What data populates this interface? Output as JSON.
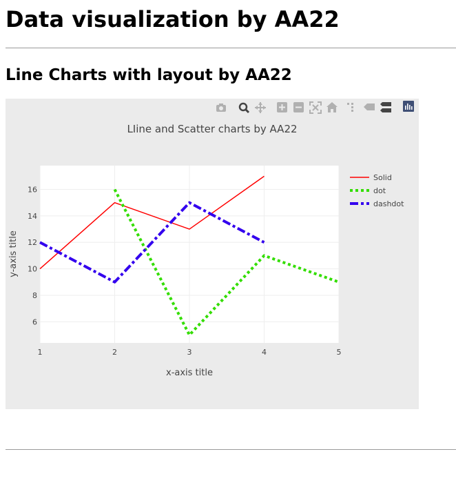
{
  "page": {
    "heading": "Data visualization by AA22",
    "subheading": "Line Charts with layout by AA22"
  },
  "modebar": {
    "icons": [
      "camera-icon",
      "zoom-icon",
      "pan-icon",
      "zoom-in-icon",
      "zoom-out-icon",
      "autoscale-icon",
      "reset-axes-icon",
      "spike-lines-icon",
      "hover-closest-icon",
      "hover-compare-icon",
      "plotly-logo-icon"
    ]
  },
  "chart_data": {
    "type": "line",
    "title": "LIine and Scatter charts by AA22",
    "xlabel": "x-axis title",
    "ylabel": "y-axis title",
    "xlim": [
      1,
      5
    ],
    "ylim": [
      4.4,
      17.8
    ],
    "x_ticks": [
      1,
      2,
      3,
      4,
      5
    ],
    "y_ticks": [
      6,
      8,
      10,
      12,
      14,
      16
    ],
    "grid": true,
    "legend_position": "right",
    "series": [
      {
        "name": "Solid",
        "x": [
          1,
          2,
          3,
          4
        ],
        "y": [
          10,
          15,
          13,
          17
        ],
        "color": "#ff0000",
        "dash": "solid",
        "width": 1.5
      },
      {
        "name": "dot",
        "x": [
          2,
          3,
          4,
          5
        ],
        "y": [
          16,
          5,
          11,
          9
        ],
        "color": "#33dd00",
        "dash": "dot",
        "width": 4
      },
      {
        "name": "dashdot",
        "x": [
          1,
          2,
          3,
          4
        ],
        "y": [
          12,
          9,
          15,
          12
        ],
        "color": "#3300ee",
        "dash": "dashdot",
        "width": 4
      }
    ]
  }
}
